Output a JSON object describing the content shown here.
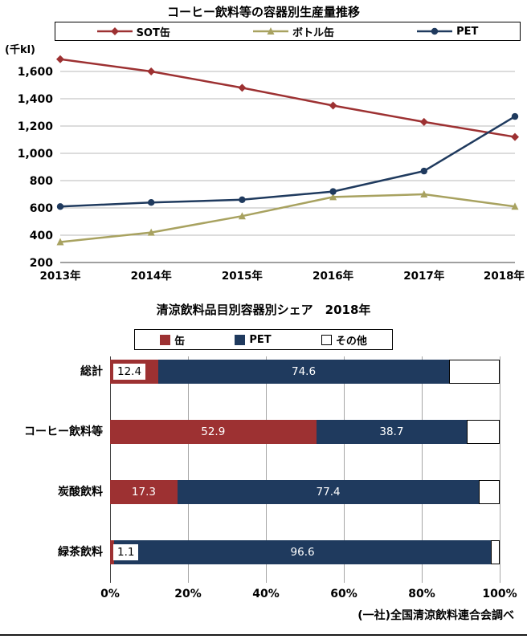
{
  "source": "(一社)全国清涼飲料連合会調べ",
  "chart_data": [
    {
      "type": "line",
      "title": "コーヒー飲料等の容器別生産量推移",
      "unit_label": "(千kl)",
      "x": [
        "2013年",
        "2014年",
        "2015年",
        "2016年",
        "2017年",
        "2018年"
      ],
      "y_ticks": [
        {
          "value": 1600,
          "label": "1,600"
        },
        {
          "value": 1400,
          "label": "1,400"
        },
        {
          "value": 1200,
          "label": "1,200"
        },
        {
          "value": 1000,
          "label": "1,000"
        },
        {
          "value": 800,
          "label": "800"
        },
        {
          "value": 600,
          "label": "600"
        },
        {
          "value": 400,
          "label": "400"
        },
        {
          "value": 200,
          "label": "200"
        }
      ],
      "ylim": [
        200,
        1750
      ],
      "grid": "horizontal",
      "legend_position": "top",
      "series": [
        {
          "name": "SOT缶",
          "marker": "diamond",
          "color": "#9d3132",
          "values": [
            1690,
            1600,
            1480,
            1350,
            1230,
            1120
          ]
        },
        {
          "name": "ボトル缶",
          "marker": "triangle",
          "color": "#a8a260",
          "values": [
            350,
            420,
            540,
            680,
            700,
            610
          ]
        },
        {
          "name": "PET",
          "marker": "circle",
          "color": "#1f3a5e",
          "values": [
            610,
            640,
            660,
            720,
            870,
            1270
          ]
        }
      ]
    },
    {
      "type": "bar",
      "orientation": "horizontal-stacked",
      "title": "清涼飲料品目別容器別シェア　2018年",
      "x_ticks": [
        "0%",
        "20%",
        "40%",
        "60%",
        "80%",
        "100%"
      ],
      "xlim": [
        0,
        100
      ],
      "legend": [
        {
          "name": "缶",
          "color": "#9d3132"
        },
        {
          "name": "PET",
          "color": "#1f3a5e"
        },
        {
          "name": "その他",
          "color": "#ffffff"
        }
      ],
      "colors": {
        "can": "#9d3132",
        "pet": "#1f3a5e",
        "other": "#ffffff"
      },
      "rows": [
        {
          "category": "総計",
          "can": 12.4,
          "pet": 74.6,
          "other": 13.0,
          "can_label": "12.4",
          "pet_label": "74.6"
        },
        {
          "category": "コーヒー飲料等",
          "can": 52.9,
          "pet": 38.7,
          "other": 8.4,
          "can_label": "52.9",
          "pet_label": "38.7"
        },
        {
          "category": "炭酸飲料",
          "can": 17.3,
          "pet": 77.4,
          "other": 5.3,
          "can_label": "17.3",
          "pet_label": "77.4"
        },
        {
          "category": "緑茶飲料",
          "can": 1.1,
          "pet": 96.6,
          "other": 2.3,
          "can_label": "1.1",
          "pet_label": "96.6"
        }
      ]
    }
  ]
}
